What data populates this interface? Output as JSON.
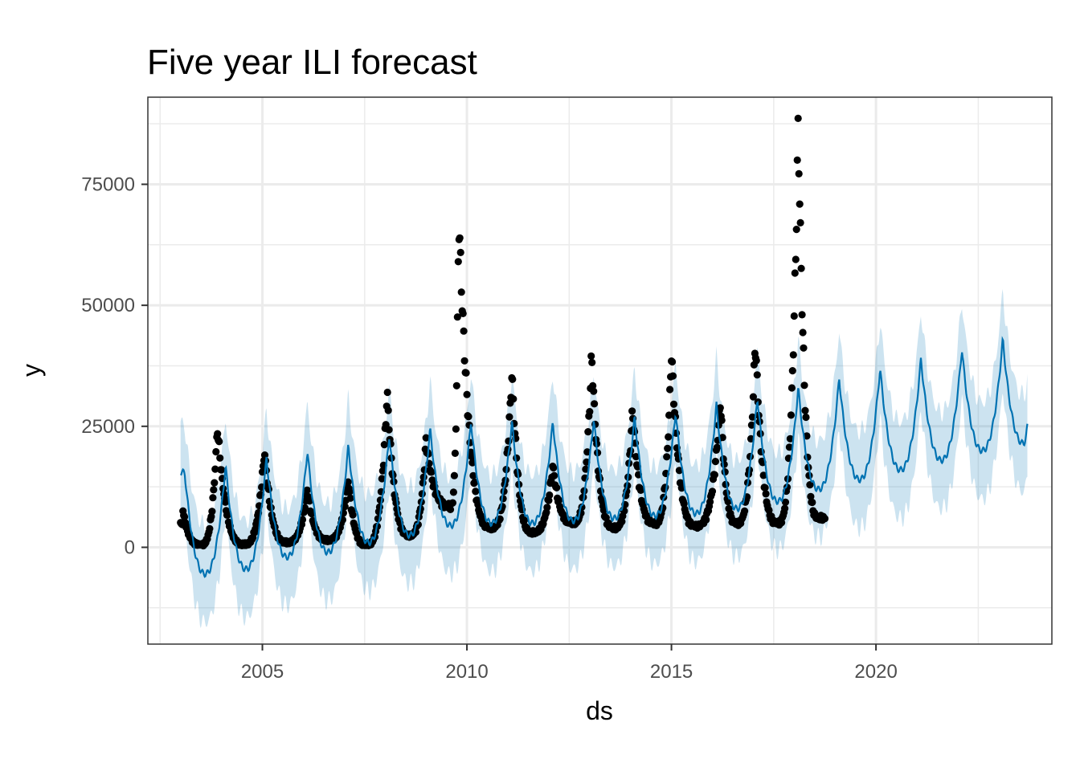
{
  "chart_data": {
    "type": "scatter",
    "title": "Five year ILI forecast",
    "xlabel": "ds",
    "ylabel": "y",
    "xlim": [
      2002.2,
      2024.3
    ],
    "ylim": [
      -20000,
      93000
    ],
    "x_ticks": [
      2005,
      2010,
      2015,
      2020
    ],
    "x_tick_labels": [
      "2005",
      "2010",
      "2015",
      "2020"
    ],
    "y_ticks": [
      0,
      25000,
      50000,
      75000
    ],
    "y_tick_labels": [
      "0",
      "25000",
      "50000",
      "75000"
    ],
    "grid": true,
    "observed_range": [
      2003.0,
      2018.75
    ],
    "forecast_range": [
      2003.0,
      2023.7
    ],
    "series": [
      {
        "kind": "observed_points",
        "peaks": [
          {
            "x": 2003.05,
            "y": 8000
          },
          {
            "x": 2003.9,
            "y": 25000
          },
          {
            "x": 2005.05,
            "y": 20000
          },
          {
            "x": 2006.1,
            "y": 12000
          },
          {
            "x": 2007.1,
            "y": 14000
          },
          {
            "x": 2008.05,
            "y": 32000
          },
          {
            "x": 2009.0,
            "y": 22000
          },
          {
            "x": 2009.8,
            "y": 69000
          },
          {
            "x": 2011.1,
            "y": 36500
          },
          {
            "x": 2012.1,
            "y": 17000
          },
          {
            "x": 2013.05,
            "y": 40000
          },
          {
            "x": 2014.05,
            "y": 28500
          },
          {
            "x": 2015.0,
            "y": 40500
          },
          {
            "x": 2016.2,
            "y": 30500
          },
          {
            "x": 2017.05,
            "y": 43000
          },
          {
            "x": 2018.1,
            "y": 88000
          }
        ],
        "troughs": [
          {
            "x": 2003.5,
            "y": 500
          },
          {
            "x": 2004.55,
            "y": 600
          },
          {
            "x": 2005.6,
            "y": 1000
          },
          {
            "x": 2006.6,
            "y": 1500
          },
          {
            "x": 2007.55,
            "y": 500
          },
          {
            "x": 2008.6,
            "y": 2500
          },
          {
            "x": 2009.6,
            "y": 8500
          },
          {
            "x": 2010.6,
            "y": 4000
          },
          {
            "x": 2011.6,
            "y": 3000
          },
          {
            "x": 2012.6,
            "y": 5000
          },
          {
            "x": 2013.6,
            "y": 4000
          },
          {
            "x": 2014.6,
            "y": 5000
          },
          {
            "x": 2015.6,
            "y": 4500
          },
          {
            "x": 2016.6,
            "y": 5000
          },
          {
            "x": 2017.6,
            "y": 5000
          },
          {
            "x": 2018.6,
            "y": 6000
          }
        ],
        "color": "#000000"
      },
      {
        "kind": "forecast_line",
        "annual_peaks": [
          {
            "x": 2003.1,
            "y": 15500
          },
          {
            "x": 2004.1,
            "y": 17000
          },
          {
            "x": 2005.1,
            "y": 18500
          },
          {
            "x": 2006.1,
            "y": 20000
          },
          {
            "x": 2007.1,
            "y": 21000
          },
          {
            "x": 2008.1,
            "y": 23000
          },
          {
            "x": 2009.1,
            "y": 24500
          },
          {
            "x": 2010.1,
            "y": 26000
          },
          {
            "x": 2011.1,
            "y": 26000
          },
          {
            "x": 2012.1,
            "y": 26000
          },
          {
            "x": 2013.1,
            "y": 26500
          },
          {
            "x": 2014.1,
            "y": 27000
          },
          {
            "x": 2015.1,
            "y": 28000
          },
          {
            "x": 2016.1,
            "y": 29500
          },
          {
            "x": 2017.1,
            "y": 31000
          },
          {
            "x": 2018.1,
            "y": 33000
          },
          {
            "x": 2019.1,
            "y": 35000
          },
          {
            "x": 2020.1,
            "y": 37000
          },
          {
            "x": 2021.1,
            "y": 39000
          },
          {
            "x": 2022.1,
            "y": 41000
          },
          {
            "x": 2023.1,
            "y": 43000
          }
        ],
        "annual_troughs": [
          {
            "x": 2003.6,
            "y": -5500
          },
          {
            "x": 2004.6,
            "y": -4500
          },
          {
            "x": 2005.6,
            "y": -2000
          },
          {
            "x": 2006.6,
            "y": -1000
          },
          {
            "x": 2007.6,
            "y": 1000
          },
          {
            "x": 2008.6,
            "y": 2500
          },
          {
            "x": 2009.6,
            "y": 4500
          },
          {
            "x": 2010.6,
            "y": 5000
          },
          {
            "x": 2011.6,
            "y": 5000
          },
          {
            "x": 2012.6,
            "y": 5500
          },
          {
            "x": 2013.6,
            "y": 6000
          },
          {
            "x": 2014.6,
            "y": 6500
          },
          {
            "x": 2015.6,
            "y": 7000
          },
          {
            "x": 2016.6,
            "y": 8000
          },
          {
            "x": 2017.6,
            "y": 9500
          },
          {
            "x": 2018.6,
            "y": 12000
          },
          {
            "x": 2019.6,
            "y": 14000
          },
          {
            "x": 2020.6,
            "y": 16000
          },
          {
            "x": 2021.6,
            "y": 18000
          },
          {
            "x": 2022.6,
            "y": 20000
          },
          {
            "x": 2023.6,
            "y": 21500
          }
        ],
        "end_point": {
          "x": 2023.7,
          "y": 25000
        },
        "band_half_width": 10000,
        "color": "#0072B2",
        "band_color": "#0072B2"
      }
    ]
  }
}
